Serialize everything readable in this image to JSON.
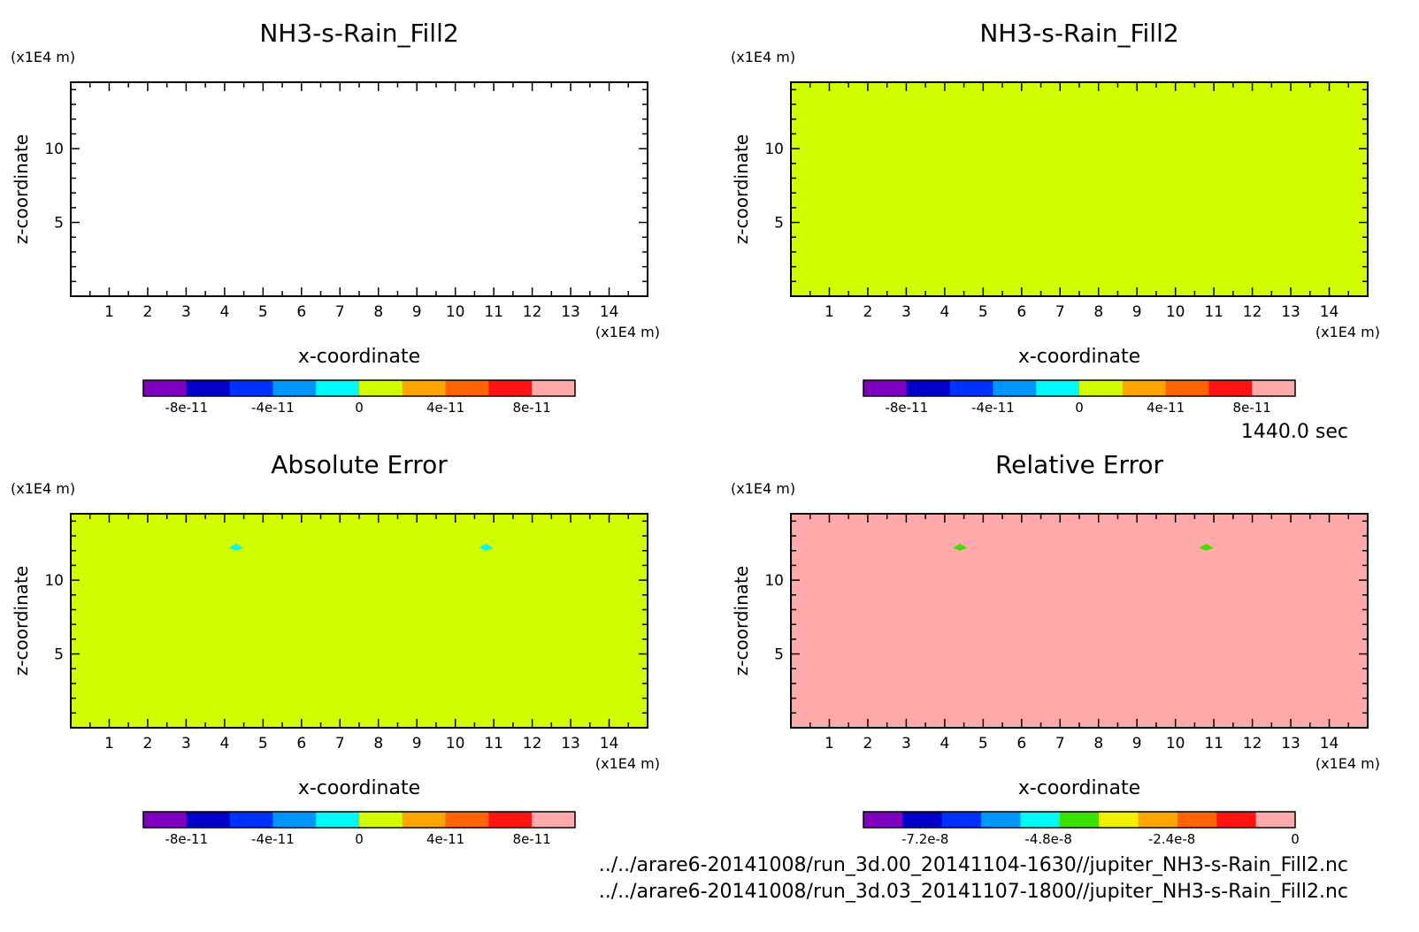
{
  "chart_data": [
    {
      "type": "heatmap",
      "title": "NH3-s-Rain_Fill2",
      "xlabel": "x-coordinate",
      "ylabel": "z-coordinate",
      "x_unit": "(x1E4 m)",
      "y_unit": "(x1E4 m)",
      "xlim": [
        0,
        15
      ],
      "ylim": [
        0,
        14.5
      ],
      "x_ticks": [
        "1",
        "2",
        "3",
        "4",
        "5",
        "6",
        "7",
        "8",
        "9",
        "10",
        "11",
        "12",
        "13",
        "14"
      ],
      "y_ticks": [
        "5",
        "10"
      ],
      "field": {
        "value": null,
        "color": "#ffffff"
      },
      "features": [],
      "colorbar": {
        "colors": [
          "#7f00bf",
          "#0000c8",
          "#0032ff",
          "#0096ff",
          "#00fafa",
          "#d2ff00",
          "#ffa500",
          "#ff6400",
          "#ff1414",
          "#ffaaaa"
        ],
        "tick_labels": [
          "-8e-11",
          "-4e-11",
          "0",
          "4e-11",
          "8e-11"
        ],
        "tick_values": [
          -8e-11,
          -4e-11,
          0,
          4e-11,
          8e-11
        ],
        "range": [
          -1e-10,
          1e-10
        ]
      }
    },
    {
      "type": "heatmap",
      "title": "NH3-s-Rain_Fill2",
      "xlabel": "x-coordinate",
      "ylabel": "z-coordinate",
      "x_unit": "(x1E4 m)",
      "y_unit": "(x1E4 m)",
      "xlim": [
        0,
        15
      ],
      "ylim": [
        0,
        14.5
      ],
      "x_ticks": [
        "1",
        "2",
        "3",
        "4",
        "5",
        "6",
        "7",
        "8",
        "9",
        "10",
        "11",
        "12",
        "13",
        "14"
      ],
      "y_ticks": [
        "5",
        "10"
      ],
      "field": {
        "value": 0,
        "color": "#d2ff00"
      },
      "features": [],
      "colorbar": {
        "colors": [
          "#7f00bf",
          "#0000c8",
          "#0032ff",
          "#0096ff",
          "#00fafa",
          "#d2ff00",
          "#ffa500",
          "#ff6400",
          "#ff1414",
          "#ffaaaa"
        ],
        "tick_labels": [
          "-8e-11",
          "-4e-11",
          "0",
          "4e-11",
          "8e-11"
        ],
        "tick_values": [
          -8e-11,
          -4e-11,
          0,
          4e-11,
          8e-11
        ],
        "range": [
          -1e-10,
          1e-10
        ]
      }
    },
    {
      "type": "heatmap",
      "title": "Absolute Error",
      "xlabel": "x-coordinate",
      "ylabel": "z-coordinate",
      "x_unit": "(x1E4 m)",
      "y_unit": "(x1E4 m)",
      "xlim": [
        0,
        15
      ],
      "ylim": [
        0,
        14.5
      ],
      "x_ticks": [
        "1",
        "2",
        "3",
        "4",
        "5",
        "6",
        "7",
        "8",
        "9",
        "10",
        "11",
        "12",
        "13",
        "14"
      ],
      "y_ticks": [
        "5",
        "10"
      ],
      "field": {
        "value": 0,
        "color": "#d2ff00"
      },
      "features": [
        {
          "x": 4.3,
          "z": 12.3,
          "color": "#00fafa"
        },
        {
          "x": 10.8,
          "z": 12.3,
          "color": "#00fafa"
        }
      ],
      "colorbar": {
        "colors": [
          "#7f00bf",
          "#0000c8",
          "#0032ff",
          "#0096ff",
          "#00fafa",
          "#d2ff00",
          "#ffa500",
          "#ff6400",
          "#ff1414",
          "#ffaaaa"
        ],
        "tick_labels": [
          "-8e-11",
          "-4e-11",
          "0",
          "4e-11",
          "8e-11"
        ],
        "tick_values": [
          -8e-11,
          -4e-11,
          0,
          4e-11,
          8e-11
        ],
        "range": [
          -1e-10,
          1e-10
        ]
      }
    },
    {
      "type": "heatmap",
      "title": "Relative Error",
      "xlabel": "x-coordinate",
      "ylabel": "z-coordinate",
      "x_unit": "(x1E4 m)",
      "y_unit": "(x1E4 m)",
      "xlim": [
        0,
        15
      ],
      "ylim": [
        0,
        14.5
      ],
      "x_ticks": [
        "1",
        "2",
        "3",
        "4",
        "5",
        "6",
        "7",
        "8",
        "9",
        "10",
        "11",
        "12",
        "13",
        "14"
      ],
      "y_ticks": [
        "5",
        "10"
      ],
      "field": {
        "value": 0,
        "color": "#ffaaaa"
      },
      "features": [
        {
          "x": 4.4,
          "z": 12.3,
          "color": "#3ce000"
        },
        {
          "x": 10.8,
          "z": 12.3,
          "color": "#3ce000"
        }
      ],
      "colorbar": {
        "colors": [
          "#7f00bf",
          "#0000c8",
          "#0032ff",
          "#0096ff",
          "#00fafa",
          "#3ce000",
          "#f0f000",
          "#ffa500",
          "#ff6400",
          "#ff1414",
          "#ffaaaa"
        ],
        "tick_labels": [
          "-7.2e-8",
          "-4.8e-8",
          "-2.4e-8",
          "0"
        ],
        "tick_values": [
          -7.2e-08,
          -4.8e-08,
          -2.4e-08,
          0
        ],
        "range": [
          -8.4e-08,
          0
        ]
      }
    }
  ],
  "time_label": "1440.0 sec",
  "files": [
    "../../arare6-20141008/run_3d.00_20141104-1630//jupiter_NH3-s-Rain_Fill2.nc",
    "../../arare6-20141008/run_3d.03_20141107-1800//jupiter_NH3-s-Rain_Fill2.nc"
  ]
}
